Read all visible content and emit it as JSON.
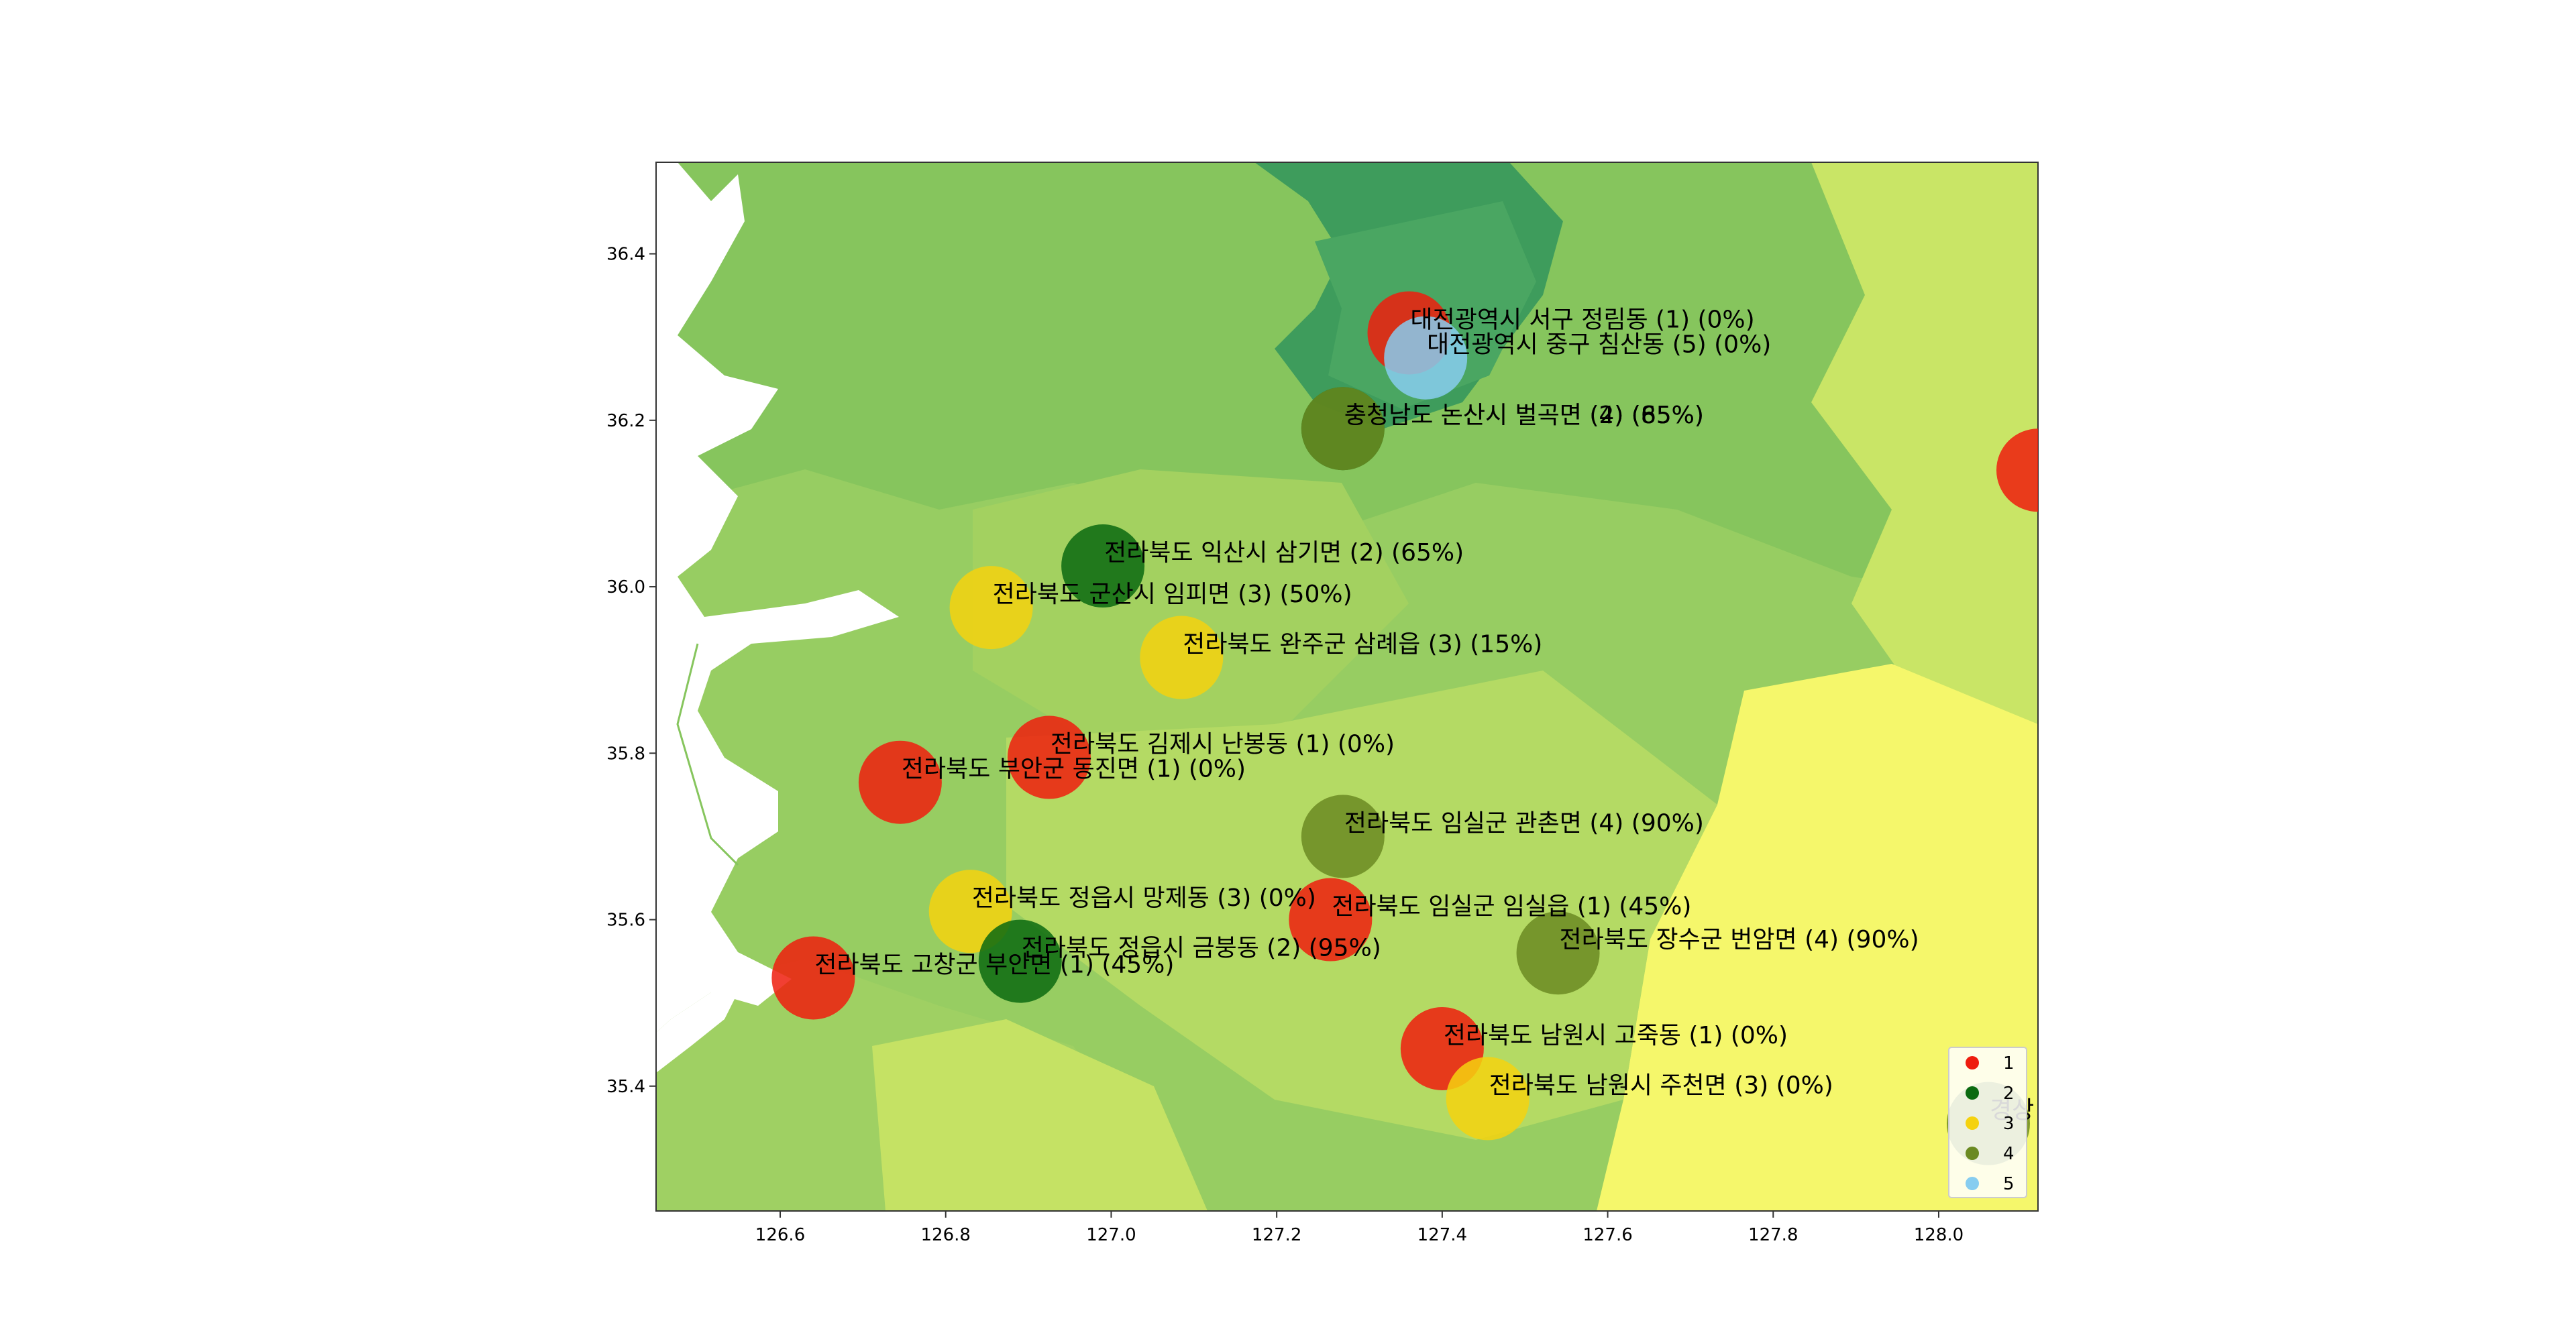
{
  "chart_data": {
    "type": "scatter",
    "title": "",
    "xlabel": "",
    "ylabel": "",
    "xlim": [
      126.45,
      128.12
    ],
    "ylim": [
      35.25,
      36.51
    ],
    "x_ticks": [
      126.6,
      126.8,
      127.0,
      127.2,
      127.4,
      127.6,
      127.8,
      128.0
    ],
    "x_tick_labels": [
      "126.6",
      "126.8",
      "127.0",
      "127.2",
      "127.4",
      "127.6",
      "127.8",
      "128.0"
    ],
    "y_ticks": [
      35.4,
      35.6,
      35.8,
      36.0,
      36.2,
      36.4
    ],
    "y_tick_labels": [
      "35.4",
      "35.6",
      "35.8",
      "36.0",
      "36.2",
      "36.4"
    ],
    "grid": false,
    "legend_position": "bottom-right",
    "legend": [
      {
        "label": "1",
        "color": "#ee1d0e"
      },
      {
        "label": "2",
        "color": "#0b6a10"
      },
      {
        "label": "3",
        "color": "#f5d20f"
      },
      {
        "label": "4",
        "color": "#6b8a22"
      },
      {
        "label": "5",
        "color": "#87cdf0"
      }
    ],
    "points": [
      {
        "x": 127.36,
        "y": 36.305,
        "group": "1",
        "label": "대전광역시 서구 정림동 (1) (0%)"
      },
      {
        "x": 127.38,
        "y": 36.275,
        "group": "5",
        "label": "대전광역시 중구 침산동 (5) (0%)"
      },
      {
        "x": 127.28,
        "y": 36.19,
        "group": "2",
        "label": "충청남도 논산시 벌곡면 (2) (65%)"
      },
      {
        "x": 127.28,
        "y": 36.19,
        "group": "4",
        "label": "충청남도 논산시 벌곡면 (4) (85%)"
      },
      {
        "x": 128.12,
        "y": 36.14,
        "group": "1",
        "label": ""
      },
      {
        "x": 126.99,
        "y": 36.025,
        "group": "2",
        "label": "전라북도 익산시 삼기면 (2) (65%)"
      },
      {
        "x": 126.855,
        "y": 35.975,
        "group": "3",
        "label": "전라북도 군산시 임피면 (3) (50%)"
      },
      {
        "x": 127.085,
        "y": 35.915,
        "group": "3",
        "label": "전라북도 완주군 삼례읍 (3) (15%)"
      },
      {
        "x": 126.925,
        "y": 35.795,
        "group": "1",
        "label": "전라북도 김제시 난봉동 (1) (0%)"
      },
      {
        "x": 126.745,
        "y": 35.765,
        "group": "1",
        "label": "전라북도 부안군 동진면 (1) (0%)"
      },
      {
        "x": 127.28,
        "y": 35.7,
        "group": "4",
        "label": "전라북도 임실군 관촌면 (4) (90%)"
      },
      {
        "x": 126.83,
        "y": 35.61,
        "group": "3",
        "label": "전라북도 정읍시 망제동 (3) (0%)"
      },
      {
        "x": 127.265,
        "y": 35.6,
        "group": "1",
        "label": "전라북도 임실군 임실읍 (1) (45%)"
      },
      {
        "x": 127.54,
        "y": 35.56,
        "group": "4",
        "label": "전라북도 장수군 번암면 (4) (90%)"
      },
      {
        "x": 126.89,
        "y": 35.55,
        "group": "2",
        "label": "전라북도 정읍시 금붕동 (2) (95%)"
      },
      {
        "x": 126.64,
        "y": 35.53,
        "group": "1",
        "label": "전라북도 고창군 부안면 (1) (45%)"
      },
      {
        "x": 127.4,
        "y": 35.445,
        "group": "1",
        "label": "전라북도 남원시 고죽동 (1) (0%)"
      },
      {
        "x": 127.455,
        "y": 35.385,
        "group": "3",
        "label": "전라북도 남원시 주천면 (3) (0%)"
      },
      {
        "x": 128.06,
        "y": 35.355,
        "group": "4",
        "label": "경상"
      }
    ]
  }
}
